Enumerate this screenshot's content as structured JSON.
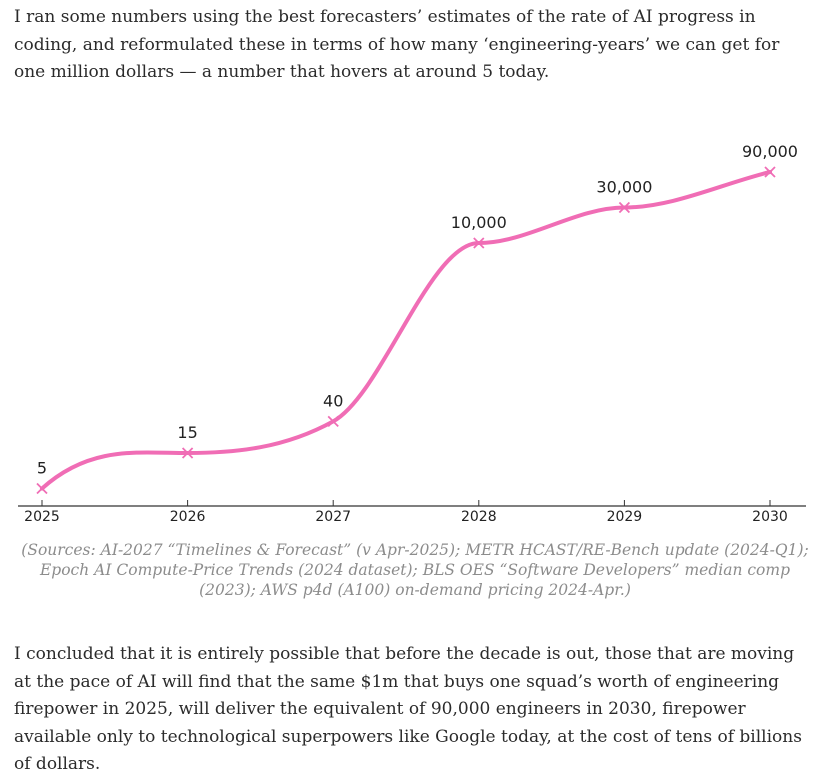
{
  "intro_text": "I ran some numbers using the best forecasters’ estimates of the rate of AI progress in coding, and reformulated these in terms of how many ‘engineering-years’ we can get for one million dollars — a number that hovers at around 5 today.",
  "chart_data": {
    "type": "line",
    "x": [
      "2025",
      "2026",
      "2027",
      "2028",
      "2029",
      "2030"
    ],
    "y": [
      5,
      15,
      40,
      10000,
      30000,
      90000
    ],
    "data_labels": [
      "5",
      "15",
      "40",
      "10,000",
      "30,000",
      "90,000"
    ],
    "line_color": "#f06db5",
    "marker": "x",
    "smooth": true,
    "grid": false,
    "show_y_axis": false
  },
  "caption": "(Sources: AI-2027 “Timelines & Forecast” (v Apr-2025); METR HCAST/RE-Bench update (2024-Q1); Epoch AI Compute-Price Trends (2024 dataset); BLS OES “Software Developers” median comp (2023); AWS p4d (A100) on-demand pricing 2024-Apr.)",
  "outro_text": "I concluded that it is entirely possible that before the decade is out, those that are moving at the pace of AI will find that the same $1m that buys one squad’s worth of engineering firepower in 2025, will deliver the equivalent of 90,000 engineers in 2030, firepower available only to technological superpowers like Google today, at the cost of tens of billions of dollars."
}
